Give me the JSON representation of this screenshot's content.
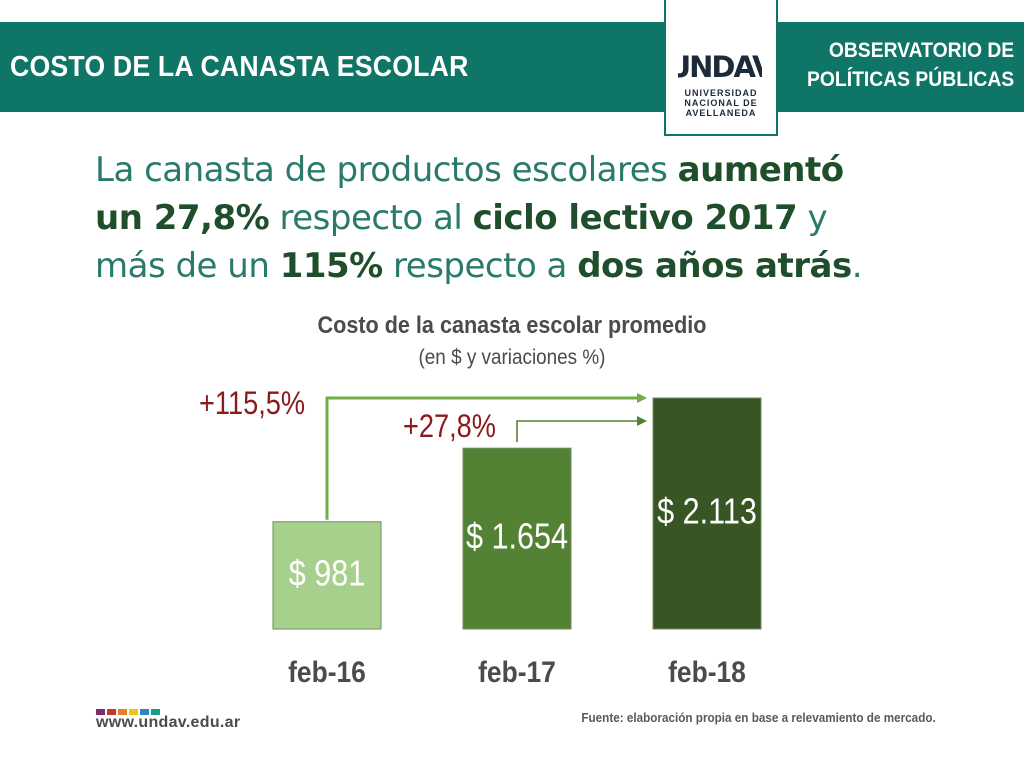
{
  "header": {
    "title": "COSTO DE LA CANASTA ESCOLAR",
    "right_line1": "OBSERVATORIO DE",
    "right_line2": "POLÍTICAS PÚBLICAS",
    "band_color": "#0f7566"
  },
  "logo": {
    "mark_text": "UNDAV",
    "line1": "UNIVERSIDAD",
    "line2": "NACIONAL DE",
    "line3": "AVELLANEDA"
  },
  "headline": {
    "part1": "La canasta de productos escolares ",
    "bold1": "aumentó",
    "bold2": "un 27,8%",
    "part2": " respecto al ",
    "bold3": "ciclo lectivo 2017",
    "part3": " y",
    "part4": "más de un ",
    "bold4": "115%",
    "part5": " respecto a ",
    "bold5": "dos años atrás",
    "part6": "."
  },
  "chart_data": {
    "type": "bar",
    "title": "Costo de la canasta escolar promedio",
    "subtitle": "(en $ y variaciones %)",
    "categories": [
      "feb-16",
      "feb-17",
      "feb-18"
    ],
    "values": [
      981,
      1654,
      2113
    ],
    "value_labels": [
      "$ 981",
      "$ 1.654",
      "$ 2.113"
    ],
    "bar_colors": [
      "#a8d08d",
      "#548235",
      "#375623"
    ],
    "ylim": [
      0,
      2113
    ],
    "annotations": [
      {
        "text": "+115,5%",
        "from": "feb-16",
        "to": "feb-18"
      },
      {
        "text": "+27,8%",
        "from": "feb-17",
        "to": "feb-18"
      }
    ],
    "annotation_color": "#8b1a1a",
    "arrow_colors": [
      "#70ad47",
      "#548235"
    ]
  },
  "footer": {
    "url": "www.undav.edu.ar",
    "source": "Fuente: elaboración propia en base a relevamiento de mercado.",
    "swatch_colors": [
      "#7b2d6b",
      "#c0392b",
      "#e67e22",
      "#f1c40f",
      "#2e86c1",
      "#16a085"
    ]
  }
}
